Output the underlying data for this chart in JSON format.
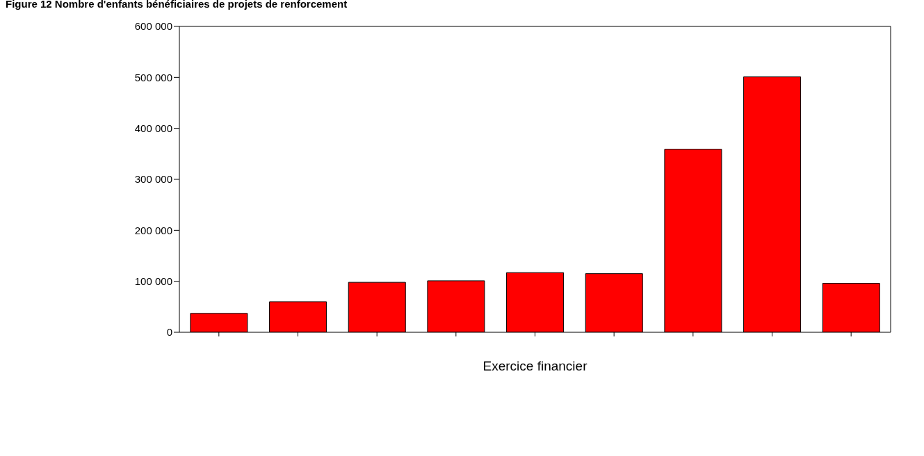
{
  "chart_data": {
    "type": "bar",
    "title": "Figure 12 Nombre d'enfants bénéficiaires de projets de renforcement",
    "xlabel": "Exercice financier",
    "categories": [
      null,
      null,
      null,
      null,
      null,
      null,
      null,
      null,
      null
    ],
    "values": [
      37000,
      60000,
      98000,
      101000,
      117000,
      115000,
      359000,
      501000,
      96000
    ],
    "color": "#ff0000",
    "ylim": [
      0,
      600000
    ],
    "yticks": [
      {
        "value": 0,
        "label": "0"
      },
      {
        "value": 100000,
        "label": "100 000"
      },
      {
        "value": 200000,
        "label": "200 000"
      },
      {
        "value": 300000,
        "label": "300 000"
      },
      {
        "value": 400000,
        "label": "400 000"
      },
      {
        "value": 500000,
        "label": "500 000"
      },
      {
        "value": 600000,
        "label": "600 000"
      }
    ],
    "grid": false
  }
}
